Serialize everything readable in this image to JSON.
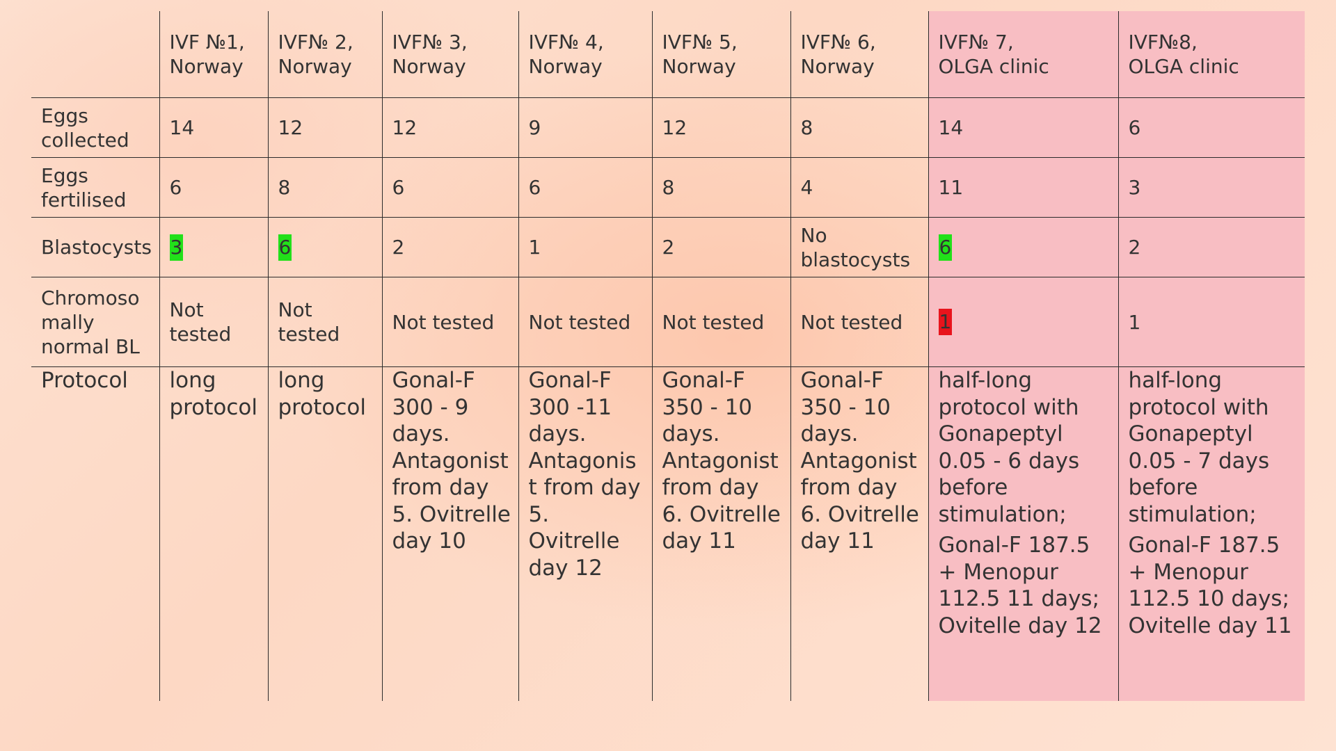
{
  "columns": [
    {
      "line1": "IVF №1,",
      "line2": "Norway"
    },
    {
      "line1": "IVF№ 2,",
      "line2": "Norway"
    },
    {
      "line1": "IVF№ 3,",
      "line2": "Norway"
    },
    {
      "line1": "IVF№ 4,",
      "line2": "Norway"
    },
    {
      "line1": "IVF№ 5,",
      "line2": "Norway"
    },
    {
      "line1": "IVF№ 6,",
      "line2": "Norway"
    },
    {
      "line1": "IVF№ 7,",
      "line2": "OLGA clinic"
    },
    {
      "line1": "IVF№8,",
      "line2": "OLGA clinic"
    }
  ],
  "rows": {
    "eggs_collected": {
      "label": "Eggs collected",
      "values": [
        "14",
        "12",
        "12",
        "9",
        "12",
        "8",
        "14",
        "6"
      ]
    },
    "eggs_fertilised": {
      "label": "Eggs fertilised",
      "values": [
        "6",
        "8",
        "6",
        "6",
        "8",
        "4",
        "11",
        "3"
      ]
    },
    "blastocysts": {
      "label": "Blastocysts",
      "values": [
        "3",
        "6",
        "2",
        "1",
        "2",
        "No blastocysts",
        "6",
        "2"
      ]
    },
    "chromosomally_normal": {
      "label": "Chromoso mally normal BL",
      "values": [
        "Not tested",
        "Not tested",
        "Not tested",
        "Not tested",
        "Not tested",
        "Not tested",
        "1",
        "1"
      ]
    },
    "protocol": {
      "label": "Protocol",
      "values": [
        {
          "p1": "long protocol",
          "p2": ""
        },
        {
          "p1": "long protocol",
          "p2": ""
        },
        {
          "p1": "Gonal-F 300 - 9 days. Antagonist from day 5. Ovitrelle day 10",
          "p2": ""
        },
        {
          "p1": "Gonal-F 300 -11 days. Antagonist from day 5. Ovitrelle day 12",
          "p2": ""
        },
        {
          "p1": "Gonal-F 350  - 10 days. Antagonist from day 6. Ovitrelle day 11",
          "p2": ""
        },
        {
          "p1": "Gonal-F 350 - 10 days. Antagonist from day 6. Ovitrelle day 11",
          "p2": ""
        },
        {
          "p1": "half-long protocol with Gonapeptyl 0.05 - 6 days before stimulation;",
          "p2": "Gonal-F 187.5  + Menopur 112.5 11 days; Ovitelle day 12"
        },
        {
          "p1": "half-long protocol with Gonapeptyl 0.05 - 7 days before stimulation;",
          "p2": "Gonal-F 187.5 + Menopur 112.5 10 days; Ovitelle day 11"
        }
      ]
    }
  },
  "colors": {
    "olga_column_background": "#f8bec3",
    "highlight_green": "#22e01a",
    "highlight_red": "#e8141c"
  }
}
